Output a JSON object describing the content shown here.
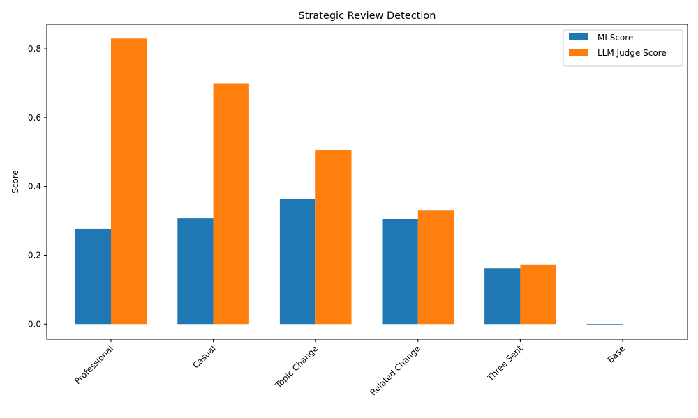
{
  "chart_data": {
    "type": "bar",
    "title": "Strategic Review Detection",
    "xlabel": "",
    "ylabel": "Score",
    "categories": [
      "Professional",
      "Casual",
      "Topic Change",
      "Related Change",
      "Three Sent",
      "Base"
    ],
    "series": [
      {
        "name": "MI Score",
        "color": "#1f77b4",
        "values": [
          0.278,
          0.308,
          0.364,
          0.306,
          0.162,
          -0.003
        ]
      },
      {
        "name": "LLM Judge Score",
        "color": "#ff7f0e",
        "values": [
          0.83,
          0.7,
          0.506,
          0.33,
          0.173,
          0.0
        ]
      }
    ],
    "ylim": [
      -0.044,
      0.871
    ],
    "yticks": [
      0.0,
      0.2,
      0.4,
      0.6,
      0.8
    ],
    "ytick_labels": [
      "0.0",
      "0.2",
      "0.4",
      "0.6",
      "0.8"
    ],
    "grid": false,
    "legend_position": "top-right"
  }
}
